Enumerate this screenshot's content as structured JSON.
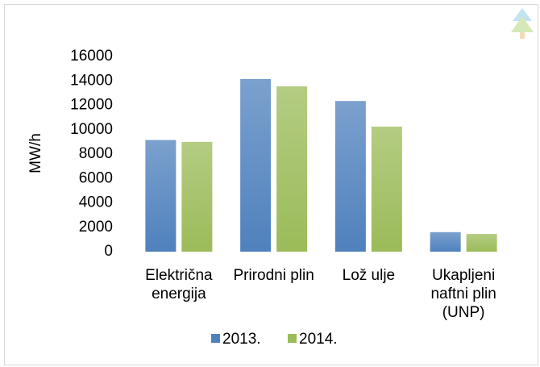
{
  "chart_data": {
    "type": "bar",
    "categories": [
      "Električna energija",
      "Prirodni plin",
      "Lož ulje",
      "Ukapljeni naftni plin (UNP)"
    ],
    "series": [
      {
        "name": "2013.",
        "color": "#4f81bd",
        "values": [
          9150,
          14150,
          12350,
          1600
        ]
      },
      {
        "name": "2014.",
        "color": "#9bbb59",
        "values": [
          9000,
          13550,
          10250,
          1450
        ]
      }
    ],
    "y_label": "MW/h",
    "ylim": [
      0,
      16000
    ],
    "yticks": [
      0,
      2000,
      4000,
      6000,
      8000,
      10000,
      12000,
      14000,
      16000
    ],
    "grid": false,
    "legend": "bottom"
  }
}
